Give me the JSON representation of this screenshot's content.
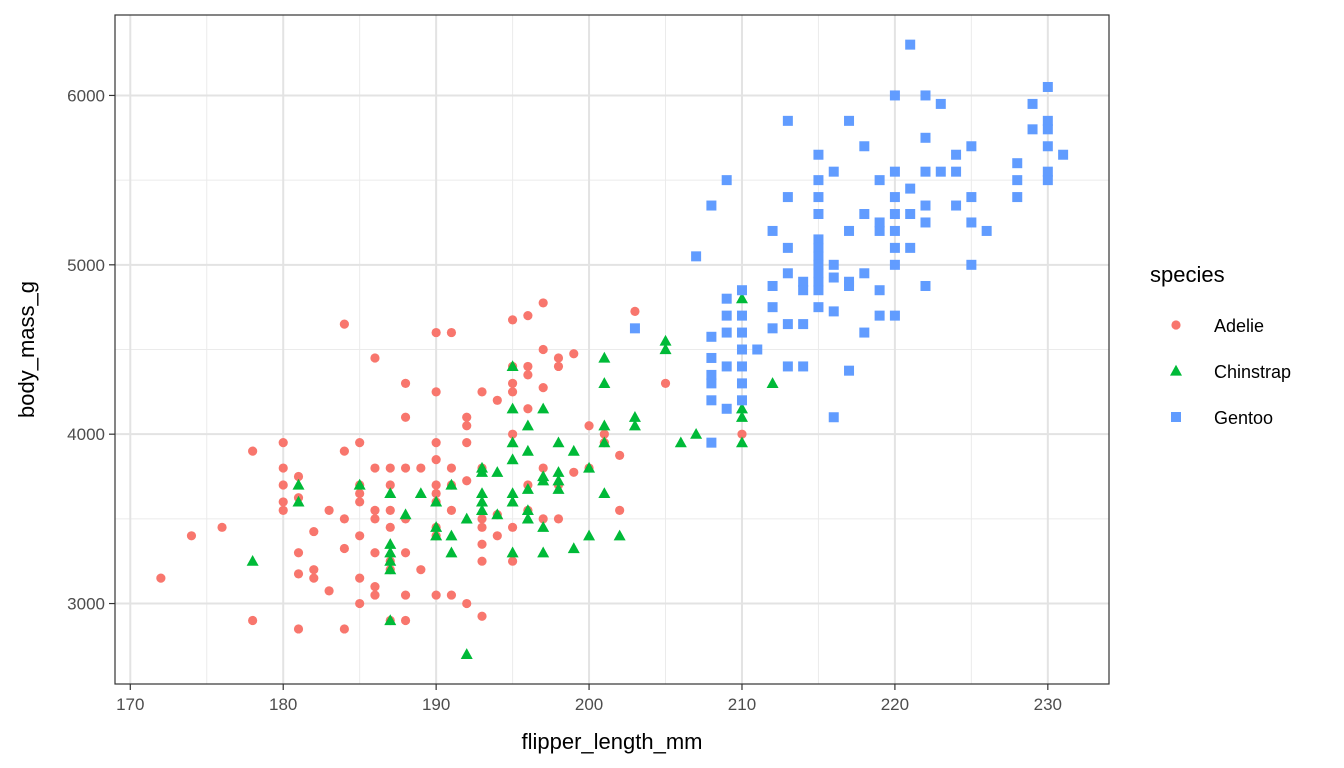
{
  "chart_data": {
    "type": "scatter",
    "title": "",
    "xlabel": "flipper_length_mm",
    "ylabel": "body_mass_g",
    "xlim": [
      169,
      234
    ],
    "ylim": [
      2525,
      6475
    ],
    "x_ticks": [
      170,
      180,
      190,
      200,
      210,
      220,
      230
    ],
    "y_ticks": [
      3000,
      4000,
      5000,
      6000
    ],
    "grid": true,
    "legend": {
      "title": "species",
      "position": "right"
    },
    "series": [
      {
        "name": "Adelie",
        "color": "#F8766D",
        "shape": "circle",
        "points": [
          [
            172,
            3150
          ],
          [
            174,
            3400
          ],
          [
            176,
            3450
          ],
          [
            178,
            3900
          ],
          [
            178,
            2900
          ],
          [
            180,
            3950
          ],
          [
            180,
            3800
          ],
          [
            180,
            3700
          ],
          [
            180,
            3600
          ],
          [
            180,
            3550
          ],
          [
            181,
            3750
          ],
          [
            181,
            3625
          ],
          [
            181,
            3300
          ],
          [
            181,
            3175
          ],
          [
            181,
            2850
          ],
          [
            182,
            3425
          ],
          [
            182,
            3200
          ],
          [
            182,
            3150
          ],
          [
            183,
            3550
          ],
          [
            183,
            3075
          ],
          [
            184,
            4650
          ],
          [
            184,
            3900
          ],
          [
            184,
            3500
          ],
          [
            184,
            3325
          ],
          [
            184,
            2850
          ],
          [
            185,
            3950
          ],
          [
            185,
            3700
          ],
          [
            185,
            3650
          ],
          [
            185,
            3600
          ],
          [
            185,
            3400
          ],
          [
            185,
            3150
          ],
          [
            185,
            3000
          ],
          [
            186,
            4450
          ],
          [
            186,
            3800
          ],
          [
            186,
            3550
          ],
          [
            186,
            3500
          ],
          [
            186,
            3300
          ],
          [
            186,
            3100
          ],
          [
            186,
            3050
          ],
          [
            187,
            3800
          ],
          [
            187,
            3700
          ],
          [
            187,
            3550
          ],
          [
            187,
            3450
          ],
          [
            187,
            3250
          ],
          [
            187,
            3200
          ],
          [
            187,
            2900
          ],
          [
            188,
            4300
          ],
          [
            188,
            4100
          ],
          [
            188,
            3800
          ],
          [
            188,
            3500
          ],
          [
            188,
            3300
          ],
          [
            188,
            3050
          ],
          [
            188,
            2900
          ],
          [
            189,
            3800
          ],
          [
            189,
            3200
          ],
          [
            190,
            4600
          ],
          [
            190,
            4250
          ],
          [
            190,
            3950
          ],
          [
            190,
            3850
          ],
          [
            190,
            3700
          ],
          [
            190,
            3650
          ],
          [
            190,
            3600
          ],
          [
            190,
            3450
          ],
          [
            190,
            3400
          ],
          [
            190,
            3050
          ],
          [
            191,
            4600
          ],
          [
            191,
            3800
          ],
          [
            191,
            3700
          ],
          [
            191,
            3550
          ],
          [
            191,
            3050
          ],
          [
            192,
            4100
          ],
          [
            192,
            4050
          ],
          [
            192,
            3950
          ],
          [
            192,
            3725
          ],
          [
            192,
            3000
          ],
          [
            193,
            4250
          ],
          [
            193,
            3800
          ],
          [
            193,
            3500
          ],
          [
            193,
            3450
          ],
          [
            193,
            3350
          ],
          [
            193,
            3250
          ],
          [
            193,
            2925
          ],
          [
            194,
            4200
          ],
          [
            194,
            3525
          ],
          [
            194,
            3400
          ],
          [
            195,
            4675
          ],
          [
            195,
            4400
          ],
          [
            195,
            4300
          ],
          [
            195,
            4250
          ],
          [
            195,
            4000
          ],
          [
            195,
            3450
          ],
          [
            195,
            3250
          ],
          [
            196,
            4700
          ],
          [
            196,
            4400
          ],
          [
            196,
            4350
          ],
          [
            196,
            4150
          ],
          [
            196,
            3700
          ],
          [
            196,
            3550
          ],
          [
            197,
            4775
          ],
          [
            197,
            4500
          ],
          [
            197,
            4275
          ],
          [
            197,
            3800
          ],
          [
            197,
            3500
          ],
          [
            198,
            4450
          ],
          [
            198,
            4400
          ],
          [
            198,
            3700
          ],
          [
            198,
            3500
          ],
          [
            199,
            4475
          ],
          [
            199,
            3775
          ],
          [
            200,
            4050
          ],
          [
            200,
            3800
          ],
          [
            201,
            4000
          ],
          [
            201,
            3950
          ],
          [
            202,
            3875
          ],
          [
            202,
            3550
          ],
          [
            203,
            4725
          ],
          [
            205,
            4300
          ],
          [
            210,
            4000
          ]
        ]
      },
      {
        "name": "Chinstrap",
        "color": "#00BA38",
        "shape": "triangle",
        "points": [
          [
            178,
            3250
          ],
          [
            181,
            3700
          ],
          [
            181,
            3600
          ],
          [
            185,
            3700
          ],
          [
            187,
            3650
          ],
          [
            187,
            3350
          ],
          [
            187,
            3300
          ],
          [
            187,
            3250
          ],
          [
            187,
            3200
          ],
          [
            187,
            2900
          ],
          [
            188,
            3525
          ],
          [
            189,
            3650
          ],
          [
            190,
            3600
          ],
          [
            190,
            3450
          ],
          [
            190,
            3400
          ],
          [
            191,
            3700
          ],
          [
            191,
            3400
          ],
          [
            191,
            3300
          ],
          [
            192,
            2700
          ],
          [
            192,
            3500
          ],
          [
            193,
            3800
          ],
          [
            193,
            3775
          ],
          [
            193,
            3650
          ],
          [
            193,
            3600
          ],
          [
            193,
            3550
          ],
          [
            194,
            3775
          ],
          [
            194,
            3525
          ],
          [
            195,
            4400
          ],
          [
            195,
            4150
          ],
          [
            195,
            3950
          ],
          [
            195,
            3850
          ],
          [
            195,
            3650
          ],
          [
            195,
            3600
          ],
          [
            195,
            3300
          ],
          [
            196,
            4050
          ],
          [
            196,
            3900
          ],
          [
            196,
            3675
          ],
          [
            196,
            3550
          ],
          [
            196,
            3500
          ],
          [
            197,
            4150
          ],
          [
            197,
            3750
          ],
          [
            197,
            3725
          ],
          [
            197,
            3450
          ],
          [
            197,
            3300
          ],
          [
            198,
            3950
          ],
          [
            198,
            3775
          ],
          [
            198,
            3725
          ],
          [
            198,
            3675
          ],
          [
            199,
            3900
          ],
          [
            199,
            3325
          ],
          [
            200,
            3800
          ],
          [
            200,
            3400
          ],
          [
            201,
            4450
          ],
          [
            201,
            4300
          ],
          [
            201,
            4050
          ],
          [
            201,
            3950
          ],
          [
            201,
            3650
          ],
          [
            202,
            3400
          ],
          [
            203,
            4100
          ],
          [
            203,
            4050
          ],
          [
            205,
            4550
          ],
          [
            205,
            4500
          ],
          [
            206,
            3950
          ],
          [
            207,
            4000
          ],
          [
            210,
            4800
          ],
          [
            210,
            4150
          ],
          [
            210,
            4100
          ],
          [
            210,
            3950
          ],
          [
            212,
            4300
          ]
        ]
      },
      {
        "name": "Gentoo",
        "color": "#619CFF",
        "shape": "square",
        "points": [
          [
            203,
            4625
          ],
          [
            207,
            5050
          ],
          [
            208,
            5350
          ],
          [
            208,
            4575
          ],
          [
            208,
            4450
          ],
          [
            208,
            4350
          ],
          [
            208,
            4300
          ],
          [
            208,
            4200
          ],
          [
            208,
            3950
          ],
          [
            209,
            5500
          ],
          [
            209,
            4800
          ],
          [
            209,
            4700
          ],
          [
            209,
            4600
          ],
          [
            209,
            4400
          ],
          [
            209,
            4150
          ],
          [
            210,
            4850
          ],
          [
            210,
            4700
          ],
          [
            210,
            4600
          ],
          [
            210,
            4500
          ],
          [
            210,
            4400
          ],
          [
            210,
            4300
          ],
          [
            210,
            4200
          ],
          [
            211,
            4500
          ],
          [
            212,
            5200
          ],
          [
            212,
            4875
          ],
          [
            212,
            4750
          ],
          [
            212,
            4625
          ],
          [
            213,
            5850
          ],
          [
            213,
            5400
          ],
          [
            213,
            5100
          ],
          [
            213,
            4950
          ],
          [
            213,
            4650
          ],
          [
            213,
            4400
          ],
          [
            214,
            4900
          ],
          [
            214,
            4850
          ],
          [
            214,
            4650
          ],
          [
            214,
            4400
          ],
          [
            215,
            5650
          ],
          [
            215,
            5500
          ],
          [
            215,
            5400
          ],
          [
            215,
            5300
          ],
          [
            215,
            5150
          ],
          [
            215,
            5100
          ],
          [
            215,
            5050
          ],
          [
            215,
            5000
          ],
          [
            215,
            4950
          ],
          [
            215,
            4900
          ],
          [
            215,
            4850
          ],
          [
            215,
            4750
          ],
          [
            216,
            5550
          ],
          [
            216,
            5000
          ],
          [
            216,
            4925
          ],
          [
            216,
            4725
          ],
          [
            216,
            4100
          ],
          [
            217,
            5850
          ],
          [
            217,
            5200
          ],
          [
            217,
            4900
          ],
          [
            217,
            4875
          ],
          [
            217,
            4375
          ],
          [
            218,
            5700
          ],
          [
            218,
            5300
          ],
          [
            218,
            4950
          ],
          [
            218,
            4600
          ],
          [
            219,
            5500
          ],
          [
            219,
            5250
          ],
          [
            219,
            5200
          ],
          [
            219,
            4850
          ],
          [
            219,
            4700
          ],
          [
            220,
            6000
          ],
          [
            220,
            5550
          ],
          [
            220,
            5400
          ],
          [
            220,
            5300
          ],
          [
            220,
            5200
          ],
          [
            220,
            5100
          ],
          [
            220,
            5000
          ],
          [
            220,
            4700
          ],
          [
            221,
            6300
          ],
          [
            221,
            5450
          ],
          [
            221,
            5300
          ],
          [
            221,
            5100
          ],
          [
            222,
            6000
          ],
          [
            222,
            5750
          ],
          [
            222,
            5550
          ],
          [
            222,
            5350
          ],
          [
            222,
            5250
          ],
          [
            222,
            4875
          ],
          [
            223,
            5950
          ],
          [
            223,
            5550
          ],
          [
            224,
            5650
          ],
          [
            224,
            5550
          ],
          [
            224,
            5350
          ],
          [
            225,
            5700
          ],
          [
            225,
            5400
          ],
          [
            225,
            5250
          ],
          [
            225,
            5000
          ],
          [
            226,
            5200
          ],
          [
            228,
            5600
          ],
          [
            228,
            5500
          ],
          [
            228,
            5400
          ],
          [
            229,
            5950
          ],
          [
            229,
            5800
          ],
          [
            230,
            6050
          ],
          [
            230,
            5850
          ],
          [
            230,
            5800
          ],
          [
            230,
            5700
          ],
          [
            230,
            5550
          ],
          [
            230,
            5500
          ],
          [
            231,
            5650
          ]
        ]
      }
    ]
  }
}
